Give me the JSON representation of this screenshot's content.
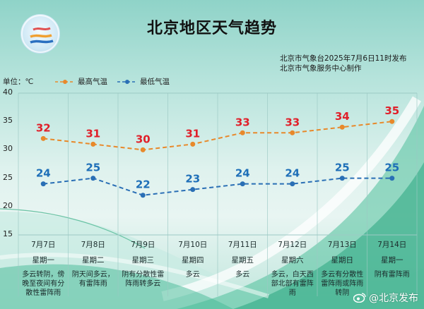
{
  "header": {
    "title": "北京地区天气趋势",
    "issuer_line1": "北京市气象台2025年7月6日11时发布",
    "issuer_line2": "北京市气象服务中心制作",
    "logo_icon": "meteorological-service-logo"
  },
  "legend": {
    "unit": "单位：℃",
    "high_label": "最高气温",
    "low_label": "最低气温"
  },
  "colors": {
    "high_line": "#e8892b",
    "high_label": "#e0202a",
    "low_line": "#2a6fb5",
    "low_label": "#1e6fb8",
    "grid": "#9cc9c4"
  },
  "days": [
    {
      "date": "7月7日",
      "weekday": "星期一",
      "desc": "多云转阴，傍晚至夜间有分散性雷阵雨"
    },
    {
      "date": "7月8日",
      "weekday": "星期二",
      "desc": "阴天间多云，有雷阵雨"
    },
    {
      "date": "7月9日",
      "weekday": "星期三",
      "desc": "阴有分散性雷阵雨转多云"
    },
    {
      "date": "7月10日",
      "weekday": "星期四",
      "desc": "多云"
    },
    {
      "date": "7月11日",
      "weekday": "星期五",
      "desc": "多云"
    },
    {
      "date": "7月12日",
      "weekday": "星期六",
      "desc": "多云，白天西部北部有雷阵雨"
    },
    {
      "date": "7月13日",
      "weekday": "星期日",
      "desc": "多云有分散性雷阵雨或阵雨转阴"
    },
    {
      "date": "7月14日",
      "weekday": "星期一",
      "desc": "阴有雷阵雨"
    }
  ],
  "footer": {
    "weibo_handle": "@北京发布",
    "weibo_icon": "weibo-icon"
  },
  "chart_data": {
    "type": "line",
    "title": "北京地区天气趋势",
    "xlabel": "",
    "ylabel": "单位：℃",
    "categories": [
      "7月7日",
      "7月8日",
      "7月9日",
      "7月10日",
      "7月11日",
      "7月12日",
      "7月13日",
      "7月14日"
    ],
    "series": [
      {
        "name": "最高气温",
        "values": [
          32,
          31,
          30,
          31,
          33,
          33,
          34,
          35
        ],
        "color": "#e8892b",
        "style": "dashed"
      },
      {
        "name": "最低气温",
        "values": [
          24,
          25,
          22,
          23,
          24,
          24,
          25,
          25
        ],
        "color": "#2a6fb5",
        "style": "dashed"
      }
    ],
    "yticks": [
      40,
      35,
      30,
      25,
      20,
      15
    ],
    "ylim": [
      15,
      40
    ],
    "grid": true,
    "legend_position": "top-left",
    "data_labels": true
  }
}
